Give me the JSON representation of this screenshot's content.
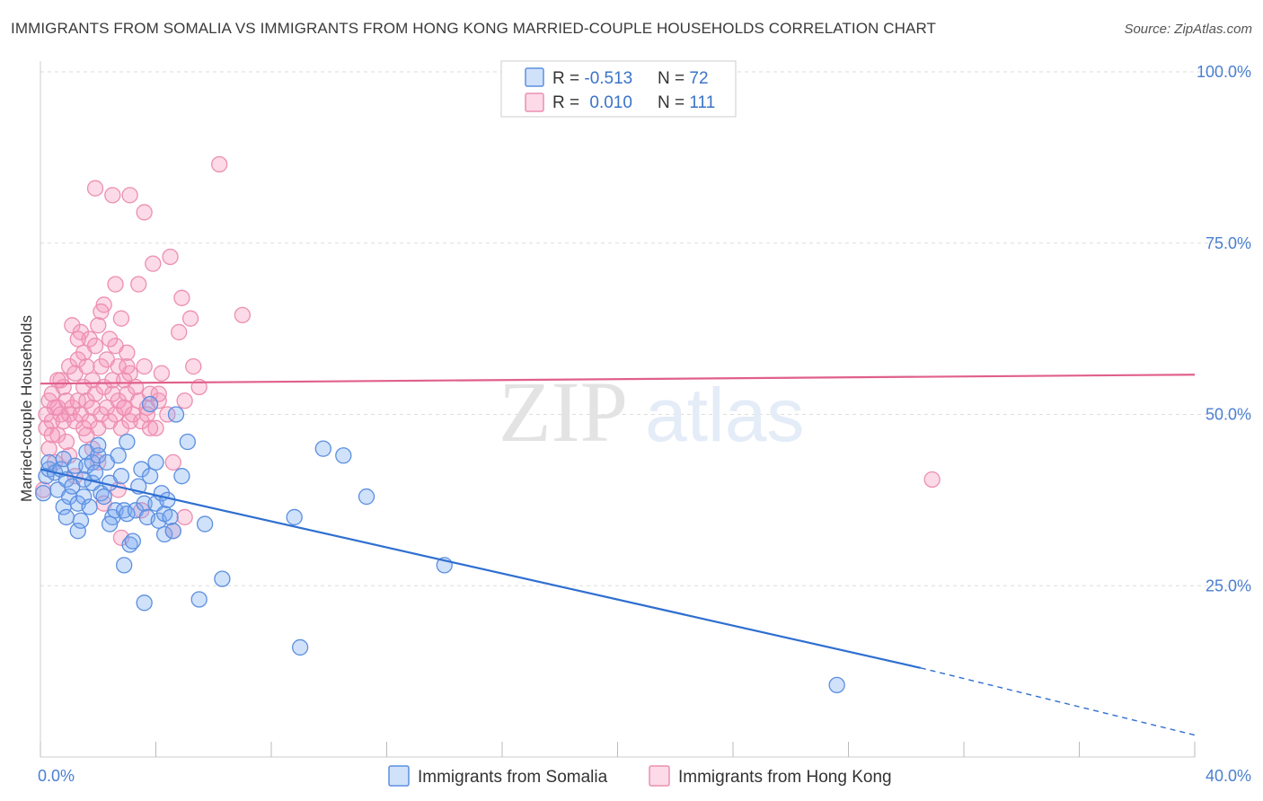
{
  "header": {
    "title": "IMMIGRANTS FROM SOMALIA VS IMMIGRANTS FROM HONG KONG MARRIED-COUPLE HOUSEHOLDS CORRELATION CHART",
    "source": "Source: ZipAtlas.com"
  },
  "watermark": {
    "zip": "ZIP",
    "atlas": "atlas"
  },
  "colors": {
    "somalia_fill": "rgba(120,170,240,0.35)",
    "somalia_stroke": "#5b8fe0",
    "somalia_line": "#2f6fd0",
    "hongkong_fill": "rgba(245,150,185,0.35)",
    "hongkong_stroke": "#ec8fb0",
    "hongkong_line": "#e0608a",
    "tick": "#4a7fd0",
    "grid": "#dddddd"
  },
  "legend": {
    "rows": [
      {
        "r_label": "R = ",
        "r_value": "-0.513",
        "n_label": "N = ",
        "n_value": "72"
      },
      {
        "r_label": "R = ",
        "r_value": "0.010",
        "n_label": "N = ",
        "n_value": "111"
      }
    ]
  },
  "chart_data": {
    "type": "scatter",
    "title": "IMMIGRANTS FROM SOMALIA VS IMMIGRANTS FROM HONG KONG MARRIED-COUPLE HOUSEHOLDS CORRELATION CHART",
    "xlabel": "",
    "ylabel": "Married-couple Households",
    "xlim": [
      0,
      40
    ],
    "ylim": [
      0,
      100
    ],
    "x_ticks": [
      {
        "value": 0,
        "label": "0.0%"
      },
      {
        "value": 40,
        "label": "40.0%"
      }
    ],
    "y_ticks": [
      {
        "value": 25,
        "label": "25.0%"
      },
      {
        "value": 50,
        "label": "50.0%"
      },
      {
        "value": 75,
        "label": "75.0%"
      },
      {
        "value": 100,
        "label": "100.0%"
      }
    ],
    "grid": true,
    "series": [
      {
        "name": "Immigrants from Somalia",
        "r": -0.513,
        "n": 72,
        "trend": {
          "x0": 0,
          "y0": 42,
          "x1": 30.5,
          "y1": 13,
          "dash_to_x": 40,
          "dash_to_y": 3.2
        },
        "points": [
          [
            0.1,
            38.5
          ],
          [
            0.2,
            41
          ],
          [
            0.3,
            42
          ],
          [
            0.3,
            43
          ],
          [
            0.5,
            41.5
          ],
          [
            0.6,
            39
          ],
          [
            0.7,
            42
          ],
          [
            0.8,
            36.5
          ],
          [
            0.8,
            43.5
          ],
          [
            0.9,
            40.5
          ],
          [
            0.9,
            35
          ],
          [
            1.0,
            38
          ],
          [
            1.1,
            39.5
          ],
          [
            1.2,
            42.5
          ],
          [
            1.3,
            37
          ],
          [
            1.3,
            33
          ],
          [
            1.4,
            34.5
          ],
          [
            1.5,
            38
          ],
          [
            1.6,
            42.5
          ],
          [
            1.6,
            44.5
          ],
          [
            1.7,
            36.5
          ],
          [
            1.8,
            40
          ],
          [
            1.8,
            43
          ],
          [
            1.9,
            41.5
          ],
          [
            2.0,
            44
          ],
          [
            2.0,
            45.5
          ],
          [
            2.1,
            38.5
          ],
          [
            2.2,
            38
          ],
          [
            2.3,
            43
          ],
          [
            2.4,
            40
          ],
          [
            2.5,
            35
          ],
          [
            2.6,
            36
          ],
          [
            2.7,
            44
          ],
          [
            2.8,
            41
          ],
          [
            2.9,
            36
          ],
          [
            3.0,
            46
          ],
          [
            3.0,
            35.5
          ],
          [
            3.1,
            31
          ],
          [
            3.2,
            31.5
          ],
          [
            3.3,
            36
          ],
          [
            3.4,
            39.5
          ],
          [
            3.5,
            42
          ],
          [
            3.6,
            37
          ],
          [
            3.7,
            35
          ],
          [
            3.8,
            41
          ],
          [
            3.8,
            51.5
          ],
          [
            4.0,
            43
          ],
          [
            4.0,
            37
          ],
          [
            4.1,
            34.5
          ],
          [
            4.2,
            38.5
          ],
          [
            4.3,
            32.5
          ],
          [
            4.3,
            35.5
          ],
          [
            4.4,
            37.5
          ],
          [
            4.5,
            35
          ],
          [
            4.7,
            50
          ],
          [
            4.9,
            41
          ],
          [
            5.1,
            46
          ],
          [
            5.5,
            23
          ],
          [
            5.7,
            34
          ],
          [
            6.3,
            26
          ],
          [
            8.8,
            35
          ],
          [
            9.0,
            16
          ],
          [
            9.8,
            45
          ],
          [
            10.5,
            44
          ],
          [
            11.3,
            38
          ],
          [
            14.0,
            28
          ],
          [
            3.6,
            22.5
          ],
          [
            2.9,
            28
          ],
          [
            2.4,
            34
          ],
          [
            4.6,
            33
          ],
          [
            27.6,
            10.5
          ],
          [
            1.5,
            40.5
          ]
        ]
      },
      {
        "name": "Immigrants from Hong Kong",
        "r": 0.01,
        "n": 111,
        "trend": {
          "x0": 0,
          "y0": 54.5,
          "x1": 40,
          "y1": 55.8
        },
        "points": [
          [
            0.2,
            48
          ],
          [
            0.2,
            50
          ],
          [
            0.3,
            45
          ],
          [
            0.3,
            52
          ],
          [
            0.4,
            49
          ],
          [
            0.4,
            53
          ],
          [
            0.5,
            51
          ],
          [
            0.6,
            47
          ],
          [
            0.6,
            51
          ],
          [
            0.7,
            50
          ],
          [
            0.7,
            55
          ],
          [
            0.8,
            49
          ],
          [
            0.8,
            54
          ],
          [
            0.9,
            52
          ],
          [
            1.0,
            50
          ],
          [
            1.0,
            57
          ],
          [
            1.1,
            51
          ],
          [
            1.1,
            63
          ],
          [
            1.2,
            49
          ],
          [
            1.2,
            56
          ],
          [
            1.3,
            52
          ],
          [
            1.3,
            58
          ],
          [
            1.4,
            50
          ],
          [
            1.4,
            62
          ],
          [
            1.5,
            54
          ],
          [
            1.5,
            59
          ],
          [
            1.6,
            52
          ],
          [
            1.6,
            57
          ],
          [
            1.7,
            49
          ],
          [
            1.7,
            61
          ],
          [
            1.8,
            51
          ],
          [
            1.8,
            55
          ],
          [
            1.9,
            53
          ],
          [
            1.9,
            60
          ],
          [
            2.0,
            48
          ],
          [
            2.0,
            63
          ],
          [
            2.1,
            50
          ],
          [
            2.1,
            57
          ],
          [
            2.2,
            54
          ],
          [
            2.2,
            66
          ],
          [
            2.3,
            51
          ],
          [
            2.3,
            58
          ],
          [
            2.4,
            49
          ],
          [
            2.4,
            61
          ],
          [
            2.5,
            53
          ],
          [
            2.5,
            55
          ],
          [
            2.6,
            50
          ],
          [
            2.6,
            60
          ],
          [
            2.7,
            52
          ],
          [
            2.7,
            57
          ],
          [
            2.8,
            48
          ],
          [
            2.8,
            64
          ],
          [
            2.9,
            51
          ],
          [
            2.9,
            55
          ],
          [
            3.0,
            53
          ],
          [
            3.0,
            59
          ],
          [
            3.1,
            49
          ],
          [
            3.1,
            56
          ],
          [
            3.2,
            50
          ],
          [
            3.3,
            54
          ],
          [
            3.4,
            52
          ],
          [
            3.5,
            49
          ],
          [
            3.6,
            57
          ],
          [
            3.7,
            51
          ],
          [
            3.8,
            53
          ],
          [
            3.9,
            72
          ],
          [
            4.0,
            48
          ],
          [
            4.1,
            52
          ],
          [
            4.2,
            56
          ],
          [
            4.4,
            50
          ],
          [
            4.5,
            73
          ],
          [
            4.6,
            43
          ],
          [
            4.8,
            62
          ],
          [
            4.9,
            67
          ],
          [
            5.0,
            52
          ],
          [
            5.2,
            64
          ],
          [
            5.3,
            57
          ],
          [
            5.5,
            54
          ],
          [
            6.2,
            86.5
          ],
          [
            7.0,
            64.5
          ],
          [
            1.9,
            83
          ],
          [
            2.5,
            82
          ],
          [
            3.1,
            82
          ],
          [
            3.6,
            79.5
          ],
          [
            2.6,
            69
          ],
          [
            3.4,
            69
          ],
          [
            0.5,
            43
          ],
          [
            0.9,
            46
          ],
          [
            1.6,
            47
          ],
          [
            2.2,
            37
          ],
          [
            3.5,
            36
          ],
          [
            4.6,
            33
          ],
          [
            5.0,
            35
          ],
          [
            2.8,
            32
          ],
          [
            1.2,
            41
          ],
          [
            0.1,
            39
          ],
          [
            1.0,
            44
          ],
          [
            1.5,
            48
          ],
          [
            2.0,
            43
          ],
          [
            2.9,
            51
          ],
          [
            3.7,
            50
          ],
          [
            4.1,
            53
          ],
          [
            0.6,
            55
          ],
          [
            1.3,
            61
          ],
          [
            2.1,
            65
          ],
          [
            3.0,
            57
          ],
          [
            3.8,
            48
          ],
          [
            0.4,
            47
          ],
          [
            1.8,
            45
          ],
          [
            2.7,
            39
          ],
          [
            30.9,
            40.5
          ]
        ]
      }
    ]
  },
  "bottom_legend": {
    "items": [
      {
        "label": "Immigrants from Somalia"
      },
      {
        "label": "Immigrants from Hong Kong"
      }
    ]
  }
}
